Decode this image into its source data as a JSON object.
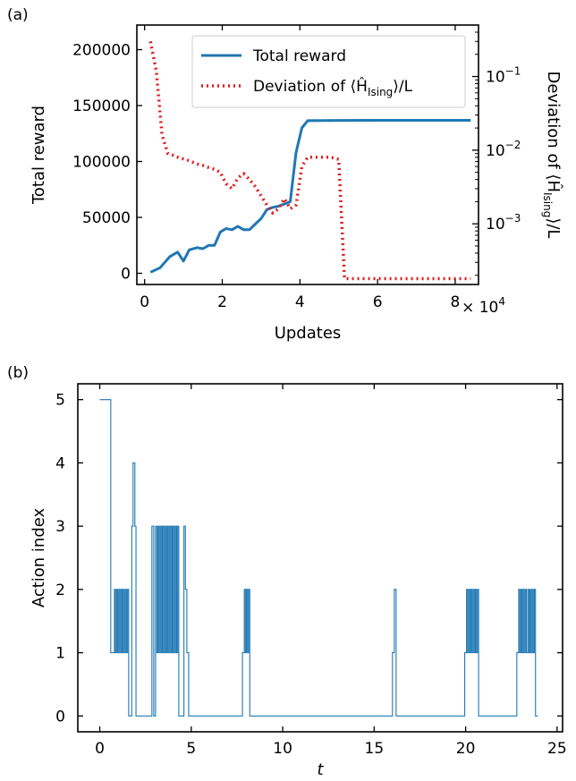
{
  "chart_data": [
    {
      "panel": "(a)",
      "type": "line",
      "xlabel": "Updates",
      "x_multiplier": "× 10^4",
      "xlim": [
        -0.2,
        8.6
      ],
      "xticks": [
        0,
        2,
        4,
        6,
        8
      ],
      "xtick_labels": [
        "0",
        "2",
        "4",
        "6",
        "8"
      ],
      "xoffset_text": {
        "base": "× 10",
        "exp": "4"
      },
      "ylabel": "Total reward",
      "ylim": [
        -10000,
        222000
      ],
      "yticks": [
        0,
        50000,
        100000,
        150000,
        200000
      ],
      "ytick_labels": [
        "0",
        "50000",
        "100000",
        "150000",
        "200000"
      ],
      "y2label": {
        "pre": "Deviation of ⟨Ĥ",
        "sub": "Ising",
        "post": "⟩/L"
      },
      "y2scale": "log",
      "y2lim": [
        0.00015,
        0.5
      ],
      "y2ticks": [
        0.001,
        0.01,
        0.1
      ],
      "y2tick_labels": [
        {
          "base": "10",
          "exp": "−3"
        },
        {
          "base": "10",
          "exp": "−2"
        },
        {
          "base": "10",
          "exp": "−1"
        }
      ],
      "legend": {
        "placement": "upper-center",
        "entries": [
          {
            "name": "Total reward",
            "series": 0
          },
          {
            "name_pre": "Deviation of ⟨Ĥ",
            "name_sub": "Ising",
            "name_post": "⟩/L",
            "series": 1
          }
        ]
      },
      "series": [
        {
          "axis": "left",
          "color": "#1f77b4",
          "style": "solid",
          "x": [
            0.15,
            0.4,
            0.65,
            0.85,
            1.0,
            1.15,
            1.35,
            1.5,
            1.65,
            1.8,
            1.95,
            2.1,
            2.25,
            2.4,
            2.55,
            2.7,
            2.85,
            3.0,
            3.15,
            3.3,
            3.45,
            3.6,
            3.75,
            3.9,
            4.05,
            4.2,
            5.0,
            6.0,
            7.0,
            8.4
          ],
          "y": [
            1000,
            5000,
            15000,
            19000,
            11000,
            21000,
            23000,
            22000,
            25000,
            25000,
            37000,
            40000,
            39000,
            42000,
            39000,
            39000,
            44000,
            49000,
            57000,
            59000,
            60000,
            62000,
            64000,
            108000,
            130000,
            136500,
            136700,
            136800,
            136800,
            136800
          ]
        },
        {
          "axis": "right",
          "color": "#e31a1c",
          "style": "dotted",
          "x": [
            0.15,
            0.3,
            0.45,
            0.6,
            0.75,
            0.9,
            1.05,
            1.2,
            1.35,
            1.5,
            1.65,
            1.8,
            1.95,
            2.1,
            2.25,
            2.4,
            2.55,
            2.7,
            2.85,
            3.0,
            3.15,
            3.3,
            3.45,
            3.6,
            3.75,
            3.9,
            4.05,
            4.2,
            4.5,
            4.8,
            5.0,
            5.15,
            6.0,
            7.0,
            8.4
          ],
          "y": [
            0.3,
            0.12,
            0.016,
            0.009,
            0.0085,
            0.0078,
            0.0075,
            0.007,
            0.0065,
            0.0062,
            0.0058,
            0.0055,
            0.005,
            0.0035,
            0.003,
            0.0042,
            0.0048,
            0.004,
            0.0032,
            0.0024,
            0.0018,
            0.0014,
            0.0016,
            0.0022,
            0.0016,
            0.0018,
            0.006,
            0.008,
            0.008,
            0.008,
            0.0075,
            0.00018,
            0.00018,
            0.00018,
            0.00018
          ]
        }
      ]
    },
    {
      "panel": "(b)",
      "type": "line",
      "step": true,
      "xlabel": "t",
      "xlim": [
        -1.2,
        25.3
      ],
      "xticks": [
        0,
        5,
        10,
        15,
        20,
        25
      ],
      "xtick_labels": [
        "0",
        "5",
        "10",
        "15",
        "20",
        "25"
      ],
      "ylabel": "Action index",
      "ylim": [
        -0.25,
        5.25
      ],
      "yticks": [
        0,
        1,
        2,
        3,
        4,
        5
      ],
      "ytick_labels": [
        "0",
        "1",
        "2",
        "3",
        "4",
        "5"
      ],
      "series": [
        {
          "color": "#1f77b4",
          "segments": [
            [
              0.0,
              5
            ],
            [
              0.6,
              1
            ],
            [
              0.8,
              2
            ],
            [
              0.86,
              1
            ],
            [
              0.92,
              2
            ],
            [
              0.98,
              1
            ],
            [
              1.04,
              2
            ],
            [
              1.1,
              1
            ],
            [
              1.16,
              2
            ],
            [
              1.22,
              1
            ],
            [
              1.28,
              2
            ],
            [
              1.34,
              1
            ],
            [
              1.4,
              2
            ],
            [
              1.46,
              1
            ],
            [
              1.52,
              2
            ],
            [
              1.58,
              0
            ],
            [
              1.75,
              3
            ],
            [
              1.82,
              4
            ],
            [
              1.92,
              3
            ],
            [
              1.98,
              0
            ],
            [
              2.85,
              3
            ],
            [
              2.95,
              0
            ],
            [
              3.05,
              3
            ],
            [
              3.12,
              1
            ],
            [
              3.18,
              3
            ],
            [
              3.24,
              1
            ],
            [
              3.3,
              3
            ],
            [
              3.36,
              1
            ],
            [
              3.42,
              3
            ],
            [
              3.48,
              1
            ],
            [
              3.54,
              3
            ],
            [
              3.6,
              1
            ],
            [
              3.66,
              3
            ],
            [
              3.72,
              1
            ],
            [
              3.78,
              3
            ],
            [
              3.84,
              1
            ],
            [
              3.9,
              3
            ],
            [
              3.96,
              1
            ],
            [
              4.02,
              3
            ],
            [
              4.08,
              1
            ],
            [
              4.14,
              3
            ],
            [
              4.2,
              1
            ],
            [
              4.26,
              3
            ],
            [
              4.32,
              0
            ],
            [
              4.6,
              3
            ],
            [
              4.68,
              2
            ],
            [
              4.76,
              1
            ],
            [
              4.86,
              0
            ],
            [
              7.8,
              1
            ],
            [
              7.9,
              2
            ],
            [
              7.96,
              1
            ],
            [
              8.02,
              2
            ],
            [
              8.08,
              1
            ],
            [
              8.14,
              2
            ],
            [
              8.2,
              0
            ],
            [
              16.0,
              1
            ],
            [
              16.1,
              2
            ],
            [
              16.2,
              0
            ],
            [
              19.95,
              1
            ],
            [
              20.05,
              2
            ],
            [
              20.11,
              1
            ],
            [
              20.17,
              2
            ],
            [
              20.23,
              1
            ],
            [
              20.29,
              2
            ],
            [
              20.35,
              1
            ],
            [
              20.41,
              2
            ],
            [
              20.47,
              1
            ],
            [
              20.53,
              2
            ],
            [
              20.59,
              1
            ],
            [
              20.65,
              2
            ],
            [
              20.71,
              0
            ],
            [
              22.8,
              1
            ],
            [
              22.9,
              2
            ],
            [
              22.96,
              1
            ],
            [
              23.02,
              2
            ],
            [
              23.08,
              1
            ],
            [
              23.14,
              2
            ],
            [
              23.2,
              1
            ],
            [
              23.26,
              2
            ],
            [
              23.32,
              1
            ],
            [
              23.4,
              2
            ],
            [
              23.46,
              1
            ],
            [
              23.52,
              2
            ],
            [
              23.58,
              1
            ],
            [
              23.64,
              2
            ],
            [
              23.7,
              1
            ],
            [
              23.76,
              2
            ],
            [
              23.82,
              0
            ],
            [
              23.95,
              0
            ]
          ]
        }
      ]
    }
  ]
}
